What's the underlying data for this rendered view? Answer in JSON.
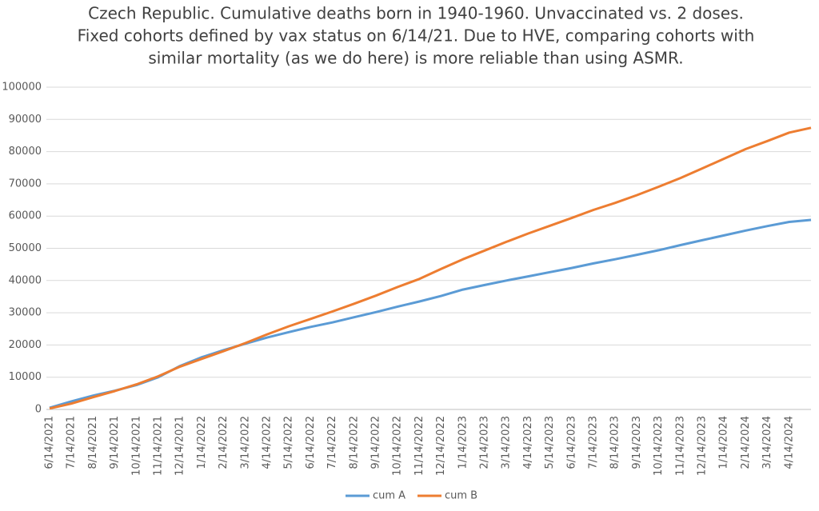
{
  "chart_data": {
    "type": "line",
    "title": [
      "Czech Republic. Cumulative deaths born in 1940-1960. Unvaccinated vs. 2 doses.",
      "Fixed cohorts defined by vax status on 6/14/21. Due to HVE, comparing cohorts with",
      "similar mortality (as we do here) is more reliable  than using ASMR."
    ],
    "categories": [
      "6/14/2021",
      "7/14/2021",
      "8/14/2021",
      "9/14/2021",
      "10/14/2021",
      "11/14/2021",
      "12/14/2021",
      "1/14/2022",
      "2/14/2022",
      "3/14/2022",
      "4/14/2022",
      "5/14/2022",
      "6/14/2022",
      "7/14/2022",
      "8/14/2022",
      "9/14/2022",
      "10/14/2022",
      "11/14/2022",
      "12/14/2022",
      "1/14/2023",
      "2/14/2023",
      "3/14/2023",
      "4/14/2023",
      "5/14/2023",
      "6/14/2023",
      "7/14/2023",
      "8/14/2023",
      "9/14/2023",
      "10/14/2023",
      "11/14/2023",
      "12/14/2023",
      "1/14/2024",
      "2/14/2024",
      "3/14/2024",
      "4/14/2024",
      null
    ],
    "series": [
      {
        "name": "cum A",
        "color": "#5b9bd5",
        "values": [
          500,
          2500,
          4300,
          5800,
          7600,
          10000,
          13500,
          16200,
          18400,
          20400,
          22300,
          24000,
          25600,
          27000,
          28600,
          30200,
          31900,
          33500,
          35200,
          37200,
          38600,
          40000,
          41300,
          42600,
          43900,
          45300,
          46600,
          48000,
          49400,
          51000,
          52500,
          54000,
          55500,
          56900,
          58200,
          58800
        ]
      },
      {
        "name": "cum B",
        "color": "#ed7d31",
        "values": [
          300,
          1800,
          3800,
          5700,
          7800,
          10300,
          13300,
          15700,
          18100,
          20600,
          23300,
          25800,
          28100,
          30400,
          32800,
          35300,
          38000,
          40500,
          43600,
          46600,
          49300,
          52000,
          54600,
          57000,
          59400,
          61900,
          64100,
          66500,
          69100,
          71800,
          74800,
          77800,
          80800,
          83300,
          85900,
          87400
        ]
      }
    ],
    "ylim": [
      0,
      100000
    ],
    "yticks": [
      0,
      10000,
      20000,
      30000,
      40000,
      50000,
      60000,
      70000,
      80000,
      90000,
      100000
    ],
    "grid": true
  }
}
